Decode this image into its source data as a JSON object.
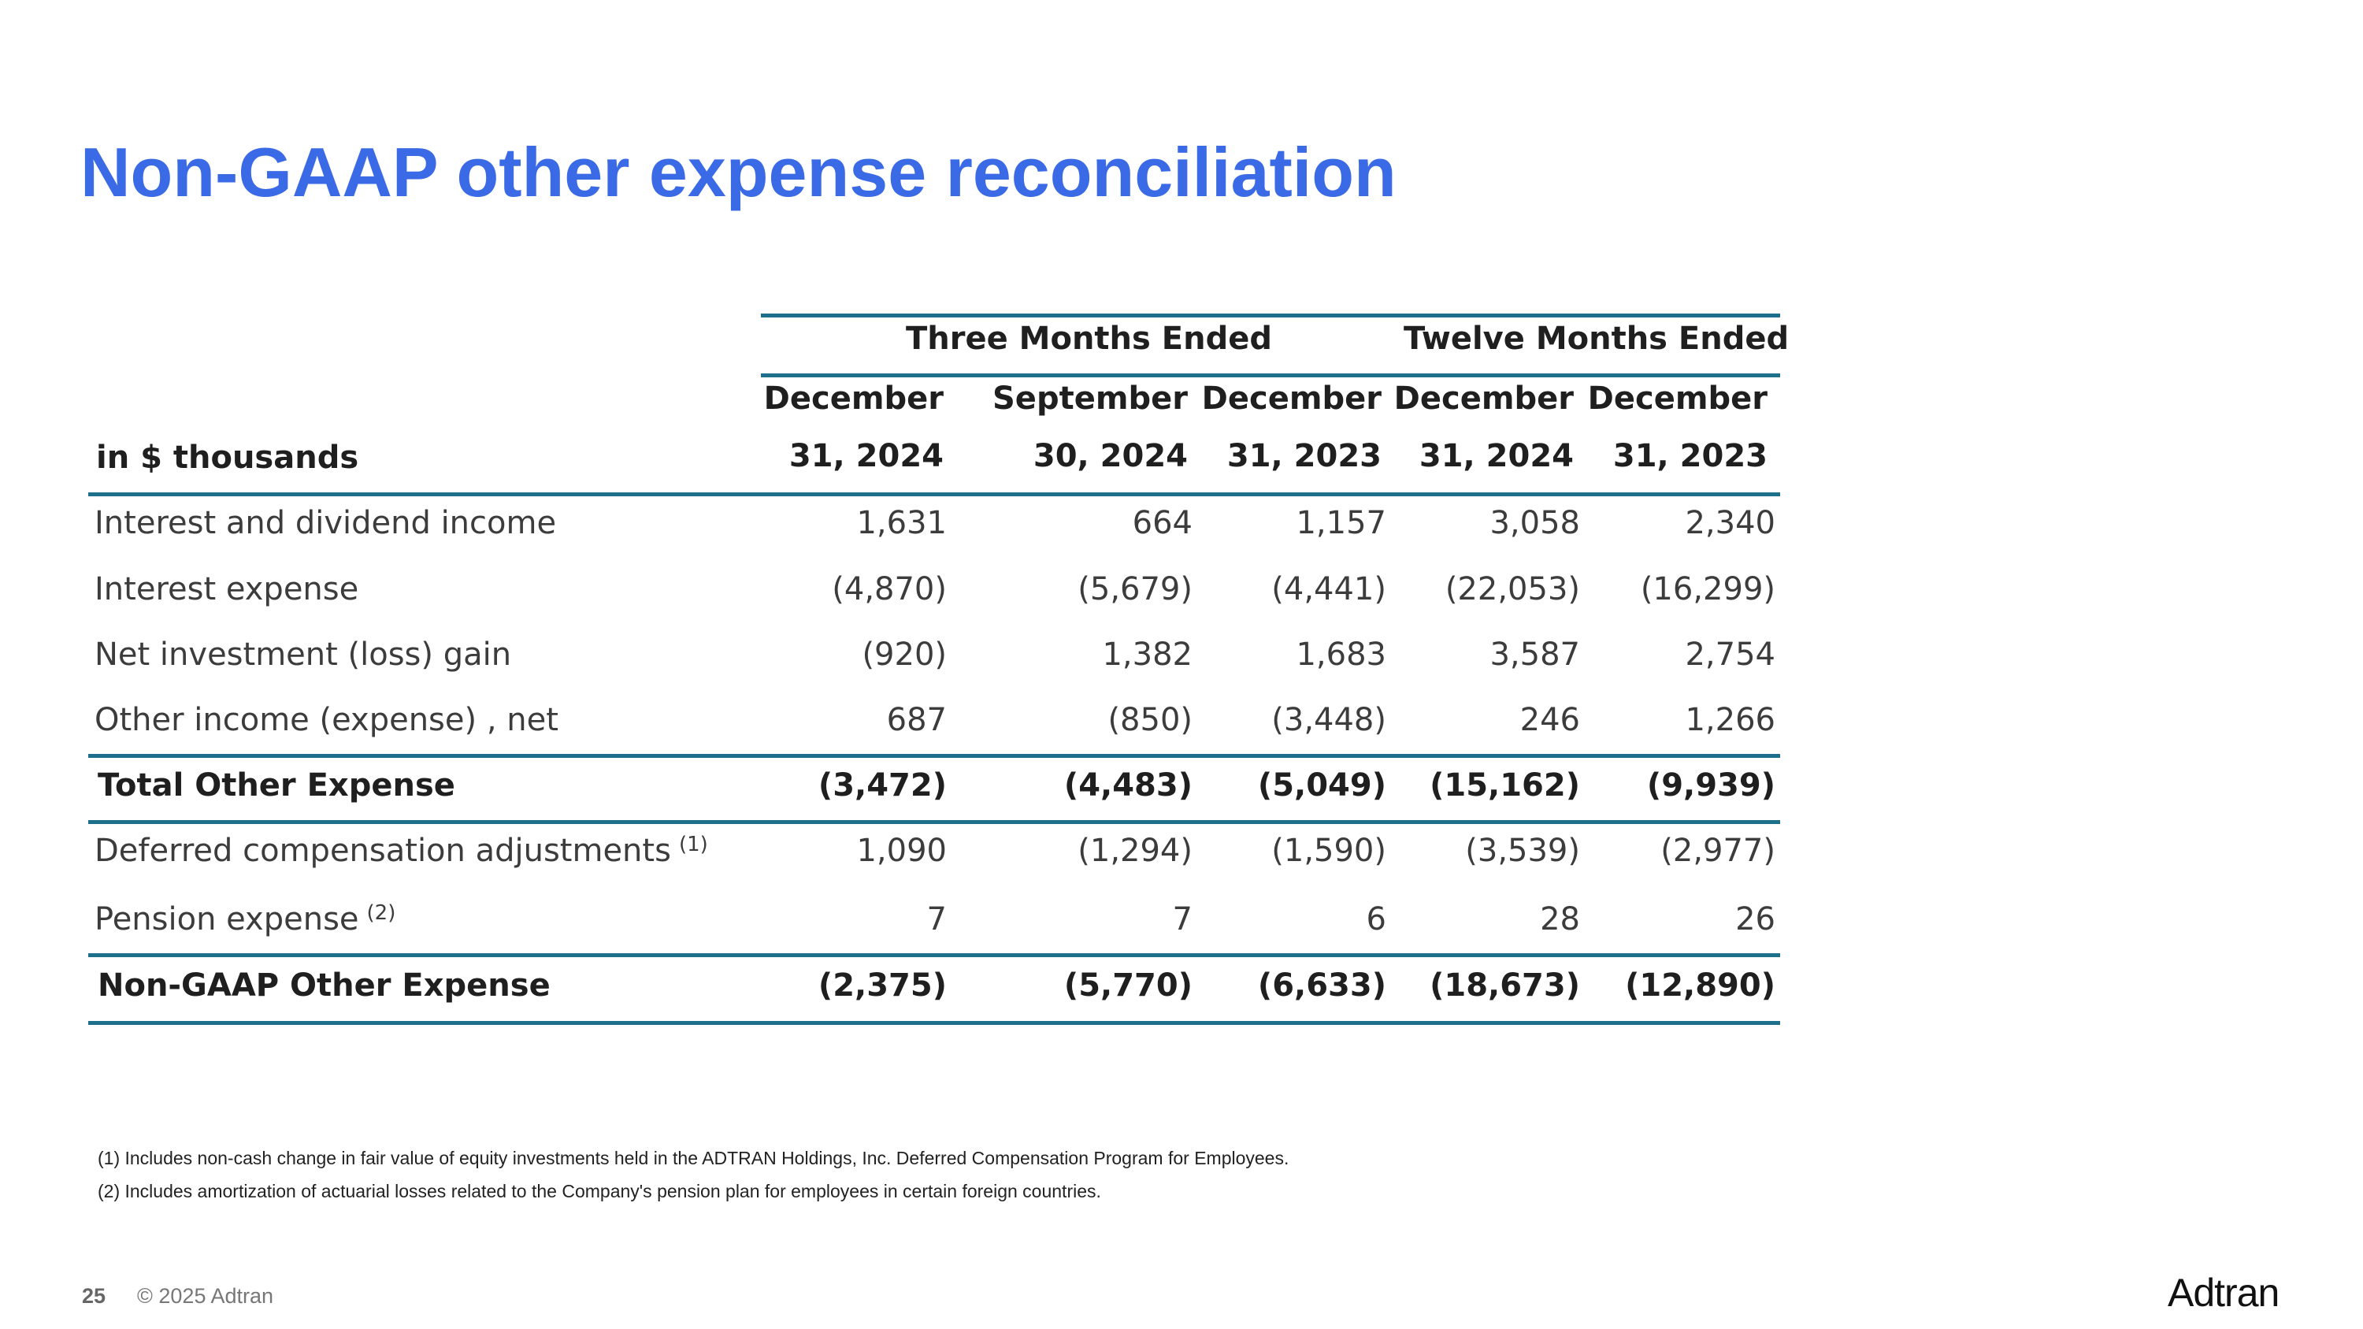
{
  "title": "Non-GAAP other expense reconciliation",
  "table": {
    "group_headers": [
      "Three Months Ended",
      "Twelve Months Ended"
    ],
    "unit_label": "in $ thousands",
    "columns": [
      {
        "line1": "December",
        "line2": "31, 2024"
      },
      {
        "line1": "September",
        "line2": "30, 2024"
      },
      {
        "line1": "December",
        "line2": "31, 2023"
      },
      {
        "line1": "December",
        "line2": "31, 2024"
      },
      {
        "line1": "December",
        "line2": "31, 2023"
      }
    ],
    "rows": [
      {
        "label": "Interest and dividend income",
        "sup": "",
        "values": [
          "1,631",
          "664",
          "1,157",
          "3,058",
          "2,340"
        ]
      },
      {
        "label": "Interest expense",
        "sup": "",
        "values": [
          "(4,870)",
          "(5,679)",
          "(4,441)",
          "(22,053)",
          "(16,299)"
        ]
      },
      {
        "label": "Net investment (loss) gain",
        "sup": "",
        "values": [
          "(920)",
          "1,382",
          "1,683",
          "3,587",
          "2,754"
        ]
      },
      {
        "label": "Other income (expense) , net",
        "sup": "",
        "values": [
          "687",
          "(850)",
          "(3,448)",
          "246",
          "1,266"
        ]
      },
      {
        "label": "Total Other Expense",
        "sup": "",
        "values": [
          "(3,472)",
          "(4,483)",
          "(5,049)",
          "(15,162)",
          "(9,939)"
        ]
      },
      {
        "label": "Deferred compensation adjustments",
        "sup": "(1)",
        "values": [
          "1,090",
          "(1,294)",
          "(1,590)",
          "(3,539)",
          "(2,977)"
        ]
      },
      {
        "label": "Pension expense",
        "sup": "(2)",
        "values": [
          "7",
          "7",
          "6",
          "28",
          "26"
        ]
      },
      {
        "label": "Non-GAAP Other Expense",
        "sup": "",
        "values": [
          "(2,375)",
          "(5,770)",
          "(6,633)",
          "(18,673)",
          "(12,890)"
        ]
      }
    ]
  },
  "footnotes": [
    "(1) Includes non-cash change in fair value of equity investments held in the ADTRAN Holdings, Inc. Deferred Compensation Program for Employees.",
    "(2) Includes amortization of actuarial losses related to the Company's pension plan for employees in certain foreign countries."
  ],
  "footer": {
    "page_number": "25",
    "copyright": "© 2025 Adtran",
    "logo_text": "Adtran"
  },
  "colors": {
    "title": "#3b6ae6",
    "rule": "#1d6f8c"
  }
}
